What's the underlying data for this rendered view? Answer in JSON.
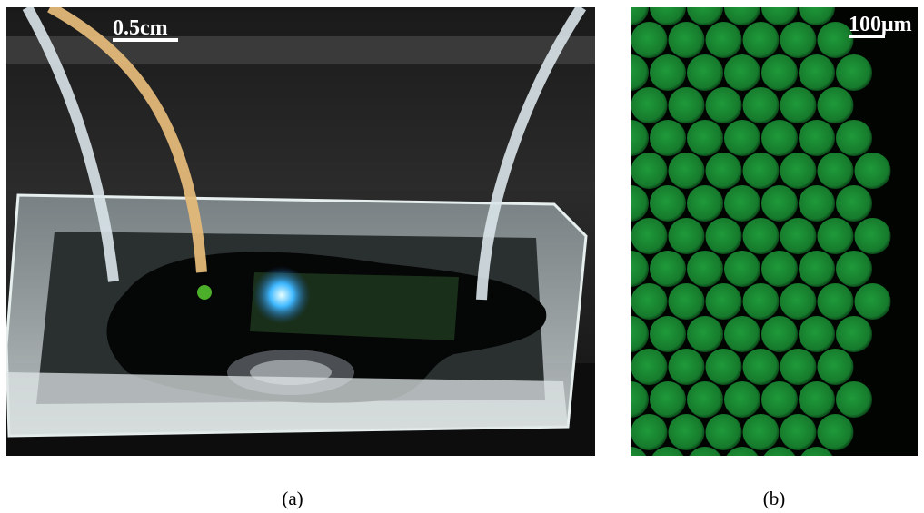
{
  "panels": [
    {
      "label": "(a)",
      "scale_bar": "0.5cm"
    },
    {
      "label": "(b)",
      "scale_bar": "100μm"
    }
  ]
}
